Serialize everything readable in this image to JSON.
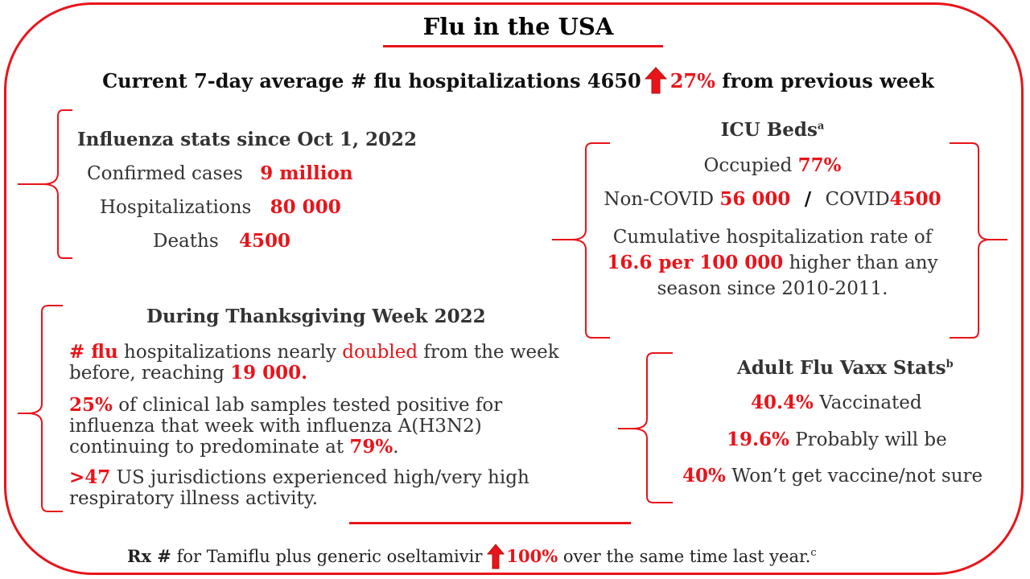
{
  "title": "Flu in the USA",
  "headline": {
    "prefix": "Current 7-day average # flu hospitalizations 4650",
    "change": "27%",
    "suffix": "from previous week"
  },
  "influenza_stats": {
    "heading": "Influenza stats since Oct 1, 2022",
    "rows": [
      {
        "label": "Confirmed cases",
        "value": "9 million"
      },
      {
        "label": "Hospitalizations",
        "value": "80 000"
      },
      {
        "label": "Deaths",
        "value": "4500"
      }
    ]
  },
  "icu_beds": {
    "heading": "ICU Beds",
    "heading_sup": "a",
    "occupied_label": "Occupied",
    "occupied_value": "77%",
    "noncovid_label": "Non-COVID",
    "noncovid_value": "56 000",
    "separator": "/",
    "covid_label": "COVID",
    "covid_value": "4500",
    "cumulative_line1": "Cumulative hospitalization rate of",
    "cumulative_value": "16.6 per 100 000",
    "cumulative_line2_rest": "higher than any",
    "cumulative_line3": "season since 2010-2011."
  },
  "thanksgiving": {
    "heading": "During Thanksgiving Week 2022",
    "p1": {
      "red1": "# flu",
      "text1": "hospitalizations nearly",
      "red2": "doubled",
      "text2": "from the week before, reaching",
      "red3": "19 000."
    },
    "p2": {
      "red1": "25%",
      "text1": "of clinical lab samples tested positive for influenza that week with influenza A(H3N2) continuing to predominate at",
      "red2": "79%",
      "text2": "."
    },
    "p3": {
      "red1": ">47",
      "text1": "US jurisdictions experienced high/very high respiratory illness activity."
    }
  },
  "vaxx": {
    "heading": "Adult Flu Vaxx Stats",
    "heading_sup": "b",
    "rows": [
      {
        "value": "40.4%",
        "label": "Vaccinated"
      },
      {
        "value": "19.6%",
        "label": "Probably will be"
      },
      {
        "value": "40%",
        "label": "Won’t get vaccine/not sure"
      }
    ]
  },
  "footer": {
    "prefix_bold": "Rx #",
    "prefix": "for Tamiflu plus generic oseltamivir",
    "change": "100%",
    "suffix": "over the same time last year.",
    "suffix_sup": "c"
  },
  "colors": {
    "accent": "#e8141a",
    "arrow": "#e8141a",
    "text": "#333333"
  },
  "icons": {
    "up_arrow": "up-arrow-icon"
  }
}
